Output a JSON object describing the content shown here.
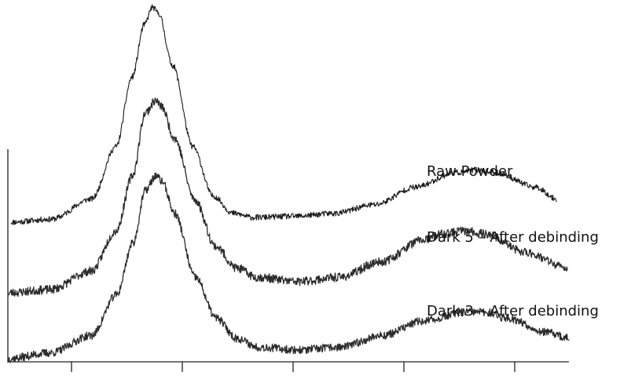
{
  "chart_data": {
    "type": "line",
    "title": "",
    "xlabel": "",
    "ylabel": "",
    "x_tick_count": 5,
    "y_ticks_shown": false,
    "grid": false,
    "legend": "inline labels beside each curve",
    "series": [
      {
        "name": "Raw Powder",
        "color": "#1a1a1a",
        "noise": 0.05,
        "seed": 11,
        "points": [
          [
            0,
            0.0
          ],
          [
            100,
            0.05
          ],
          [
            200,
            0.4
          ],
          [
            260,
            1.3
          ],
          [
            300,
            2.5
          ],
          [
            330,
            3.4
          ],
          [
            350,
            3.7
          ],
          [
            365,
            3.6
          ],
          [
            400,
            2.7
          ],
          [
            450,
            1.3
          ],
          [
            500,
            0.45
          ],
          [
            550,
            0.15
          ],
          [
            600,
            0.08
          ],
          [
            700,
            0.1
          ],
          [
            800,
            0.15
          ],
          [
            900,
            0.3
          ],
          [
            1000,
            0.6
          ],
          [
            1100,
            0.85
          ],
          [
            1150,
            0.9
          ],
          [
            1200,
            0.85
          ],
          [
            1300,
            0.6
          ],
          [
            1350,
            0.4
          ]
        ]
      },
      {
        "name": "Dark 5 – After debinding",
        "color": "#2b2b2b",
        "noise": 0.07,
        "seed": 23,
        "points": [
          [
            0,
            0.0
          ],
          [
            100,
            0.05
          ],
          [
            200,
            0.35
          ],
          [
            260,
            1.0
          ],
          [
            300,
            1.9
          ],
          [
            330,
            2.9
          ],
          [
            355,
            3.1
          ],
          [
            370,
            3.0
          ],
          [
            400,
            2.5
          ],
          [
            450,
            1.5
          ],
          [
            500,
            0.75
          ],
          [
            550,
            0.4
          ],
          [
            600,
            0.25
          ],
          [
            700,
            0.18
          ],
          [
            800,
            0.25
          ],
          [
            900,
            0.5
          ],
          [
            1000,
            0.85
          ],
          [
            1050,
            0.95
          ],
          [
            1100,
            1.0
          ],
          [
            1150,
            0.95
          ],
          [
            1250,
            0.65
          ],
          [
            1350,
            0.4
          ]
        ]
      },
      {
        "name": "Dark 3 – After debinding",
        "color": "#2b2b2b",
        "noise": 0.07,
        "seed": 37,
        "points": [
          [
            0,
            0.0
          ],
          [
            100,
            0.1
          ],
          [
            200,
            0.4
          ],
          [
            260,
            1.1
          ],
          [
            300,
            2.0
          ],
          [
            330,
            2.9
          ],
          [
            355,
            3.15
          ],
          [
            370,
            3.05
          ],
          [
            400,
            2.5
          ],
          [
            450,
            1.4
          ],
          [
            500,
            0.7
          ],
          [
            550,
            0.35
          ],
          [
            600,
            0.2
          ],
          [
            700,
            0.15
          ],
          [
            800,
            0.2
          ],
          [
            900,
            0.4
          ],
          [
            1000,
            0.65
          ],
          [
            1100,
            0.8
          ],
          [
            1150,
            0.8
          ],
          [
            1200,
            0.7
          ],
          [
            1300,
            0.45
          ],
          [
            1350,
            0.35
          ]
        ]
      }
    ]
  }
}
